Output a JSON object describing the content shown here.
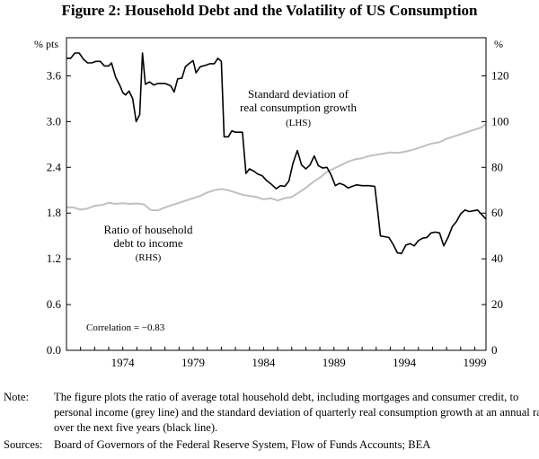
{
  "figure": {
    "title": "Figure 2: Household Debt and the Volatility of US Consumption"
  },
  "chart_data": {
    "type": "line",
    "title": "Figure 2: Household Debt and the Volatility of US Consumption",
    "left_axis": {
      "unit": "% pts",
      "range": [
        0,
        4.1
      ],
      "ticks": [
        "0.0",
        "0.6",
        "1.2",
        "1.8",
        "2.4",
        "3.0",
        "3.6"
      ]
    },
    "right_axis": {
      "unit": "%",
      "range": [
        0,
        136.67
      ],
      "ticks": [
        "0",
        "20",
        "40",
        "60",
        "80",
        "100",
        "120"
      ]
    },
    "x_axis": {
      "range": [
        1970,
        1999.8
      ],
      "ticks": [
        "1974",
        "1979",
        "1984",
        "1989",
        "1994",
        "1999"
      ]
    },
    "series": [
      {
        "name": "Standard deviation of real consumption growth",
        "axis": "left",
        "color": "#000000",
        "points": [
          [
            1970.0,
            3.83
          ],
          [
            1970.3,
            3.83
          ],
          [
            1970.6,
            3.9
          ],
          [
            1970.9,
            3.9
          ],
          [
            1971.2,
            3.82
          ],
          [
            1971.5,
            3.77
          ],
          [
            1971.8,
            3.77
          ],
          [
            1972.1,
            3.79
          ],
          [
            1972.4,
            3.79
          ],
          [
            1972.7,
            3.73
          ],
          [
            1973.0,
            3.73
          ],
          [
            1973.2,
            3.77
          ],
          [
            1973.5,
            3.58
          ],
          [
            1973.8,
            3.47
          ],
          [
            1974.0,
            3.38
          ],
          [
            1974.2,
            3.35
          ],
          [
            1974.45,
            3.4
          ],
          [
            1974.7,
            3.3
          ],
          [
            1974.95,
            3.0
          ],
          [
            1975.2,
            3.09
          ],
          [
            1975.4,
            3.9
          ],
          [
            1975.6,
            3.49
          ],
          [
            1975.9,
            3.52
          ],
          [
            1976.2,
            3.48
          ],
          [
            1976.5,
            3.5
          ],
          [
            1977.0,
            3.5
          ],
          [
            1977.4,
            3.47
          ],
          [
            1977.65,
            3.39
          ],
          [
            1977.9,
            3.56
          ],
          [
            1978.2,
            3.57
          ],
          [
            1978.45,
            3.72
          ],
          [
            1978.7,
            3.76
          ],
          [
            1979.0,
            3.8
          ],
          [
            1979.2,
            3.64
          ],
          [
            1979.5,
            3.72
          ],
          [
            1979.9,
            3.74
          ],
          [
            1980.2,
            3.76
          ],
          [
            1980.5,
            3.76
          ],
          [
            1980.75,
            3.83
          ],
          [
            1981.0,
            3.79
          ],
          [
            1981.2,
            2.8
          ],
          [
            1981.5,
            2.8
          ],
          [
            1981.75,
            2.88
          ],
          [
            1982.0,
            2.86
          ],
          [
            1982.5,
            2.86
          ],
          [
            1982.75,
            2.32
          ],
          [
            1983.0,
            2.38
          ],
          [
            1983.3,
            2.35
          ],
          [
            1983.6,
            2.31
          ],
          [
            1983.9,
            2.29
          ],
          [
            1984.2,
            2.23
          ],
          [
            1984.6,
            2.17
          ],
          [
            1984.9,
            2.12
          ],
          [
            1985.2,
            2.16
          ],
          [
            1985.5,
            2.15
          ],
          [
            1985.8,
            2.22
          ],
          [
            1986.1,
            2.46
          ],
          [
            1986.4,
            2.62
          ],
          [
            1986.7,
            2.43
          ],
          [
            1987.0,
            2.38
          ],
          [
            1987.3,
            2.43
          ],
          [
            1987.6,
            2.55
          ],
          [
            1987.9,
            2.42
          ],
          [
            1988.2,
            2.39
          ],
          [
            1988.5,
            2.4
          ],
          [
            1988.8,
            2.3
          ],
          [
            1989.1,
            2.16
          ],
          [
            1989.4,
            2.19
          ],
          [
            1989.7,
            2.17
          ],
          [
            1990.0,
            2.13
          ],
          [
            1990.3,
            2.15
          ],
          [
            1990.6,
            2.17
          ],
          [
            1991.0,
            2.16
          ],
          [
            1991.5,
            2.16
          ],
          [
            1991.9,
            2.15
          ],
          [
            1992.1,
            1.84
          ],
          [
            1992.3,
            1.5
          ],
          [
            1992.6,
            1.49
          ],
          [
            1992.9,
            1.48
          ],
          [
            1993.2,
            1.39
          ],
          [
            1993.5,
            1.28
          ],
          [
            1993.8,
            1.27
          ],
          [
            1994.1,
            1.38
          ],
          [
            1994.4,
            1.4
          ],
          [
            1994.7,
            1.37
          ],
          [
            1995.0,
            1.44
          ],
          [
            1995.3,
            1.47
          ],
          [
            1995.6,
            1.48
          ],
          [
            1995.9,
            1.54
          ],
          [
            1996.2,
            1.55
          ],
          [
            1996.5,
            1.54
          ],
          [
            1996.8,
            1.37
          ],
          [
            1997.1,
            1.48
          ],
          [
            1997.4,
            1.62
          ],
          [
            1997.7,
            1.69
          ],
          [
            1998.0,
            1.79
          ],
          [
            1998.3,
            1.84
          ],
          [
            1998.6,
            1.82
          ],
          [
            1998.9,
            1.83
          ],
          [
            1999.2,
            1.84
          ],
          [
            1999.5,
            1.78
          ],
          [
            1999.8,
            1.72
          ]
        ]
      },
      {
        "name": "Ratio of household debt to income",
        "axis": "right",
        "color": "#c0c0c0",
        "points": [
          [
            1970.0,
            62.5
          ],
          [
            1970.5,
            62.5
          ],
          [
            1971.0,
            61.5
          ],
          [
            1971.5,
            62.0
          ],
          [
            1972.0,
            63.2
          ],
          [
            1972.5,
            63.5
          ],
          [
            1973.0,
            64.5
          ],
          [
            1973.5,
            64.0
          ],
          [
            1974.0,
            64.3
          ],
          [
            1974.5,
            64.0
          ],
          [
            1975.0,
            64.2
          ],
          [
            1975.5,
            63.8
          ],
          [
            1976.0,
            61.3
          ],
          [
            1976.5,
            61.2
          ],
          [
            1977.0,
            62.5
          ],
          [
            1977.5,
            63.5
          ],
          [
            1978.0,
            64.5
          ],
          [
            1978.5,
            65.5
          ],
          [
            1979.0,
            66.5
          ],
          [
            1979.5,
            67.5
          ],
          [
            1980.0,
            69.0
          ],
          [
            1980.5,
            70.0
          ],
          [
            1981.0,
            70.5
          ],
          [
            1981.5,
            70.0
          ],
          [
            1982.0,
            69.0
          ],
          [
            1982.5,
            68.0
          ],
          [
            1983.0,
            67.5
          ],
          [
            1983.5,
            67.0
          ],
          [
            1984.0,
            66.0
          ],
          [
            1984.5,
            66.5
          ],
          [
            1985.0,
            65.5
          ],
          [
            1985.5,
            66.5
          ],
          [
            1986.0,
            67.0
          ],
          [
            1986.5,
            69.0
          ],
          [
            1987.0,
            71.0
          ],
          [
            1987.5,
            73.5
          ],
          [
            1988.0,
            75.5
          ],
          [
            1988.5,
            78.0
          ],
          [
            1989.0,
            79.5
          ],
          [
            1989.5,
            81.0
          ],
          [
            1990.0,
            82.5
          ],
          [
            1990.5,
            83.5
          ],
          [
            1991.0,
            84.0
          ],
          [
            1991.5,
            85.0
          ],
          [
            1992.0,
            85.5
          ],
          [
            1992.5,
            86.0
          ],
          [
            1993.0,
            86.5
          ],
          [
            1993.5,
            86.3
          ],
          [
            1994.0,
            86.8
          ],
          [
            1994.5,
            87.5
          ],
          [
            1995.0,
            88.5
          ],
          [
            1995.5,
            89.5
          ],
          [
            1996.0,
            90.5
          ],
          [
            1996.5,
            91.0
          ],
          [
            1997.0,
            92.5
          ],
          [
            1997.5,
            93.5
          ],
          [
            1998.0,
            94.5
          ],
          [
            1998.5,
            95.5
          ],
          [
            1999.0,
            96.5
          ],
          [
            1999.5,
            97.5
          ],
          [
            1999.8,
            99.0
          ]
        ]
      }
    ],
    "labels": {
      "lhs_unit": "% pts",
      "rhs_unit": "%",
      "lhs_series_line1": "Standard deviation of",
      "lhs_series_line2": "real consumption growth",
      "lhs_series_line3": "(LHS)",
      "rhs_series_line1": "Ratio of household",
      "rhs_series_line2": "debt to income",
      "rhs_series_line3": "(RHS)",
      "correlation": "Correlation = −0.83"
    }
  },
  "notes": {
    "note_label": "Note:",
    "note_text": "The figure plots the ratio of average total household debt, including mortgages and consumer credit, to personal income (grey line) and the standard deviation of quarterly real consumption growth at an annual rate over the next five years (black line).",
    "sources_label": "Sources:",
    "sources_text": "Board of Governors of the Federal Reserve System, Flow of Funds Accounts; BEA"
  }
}
